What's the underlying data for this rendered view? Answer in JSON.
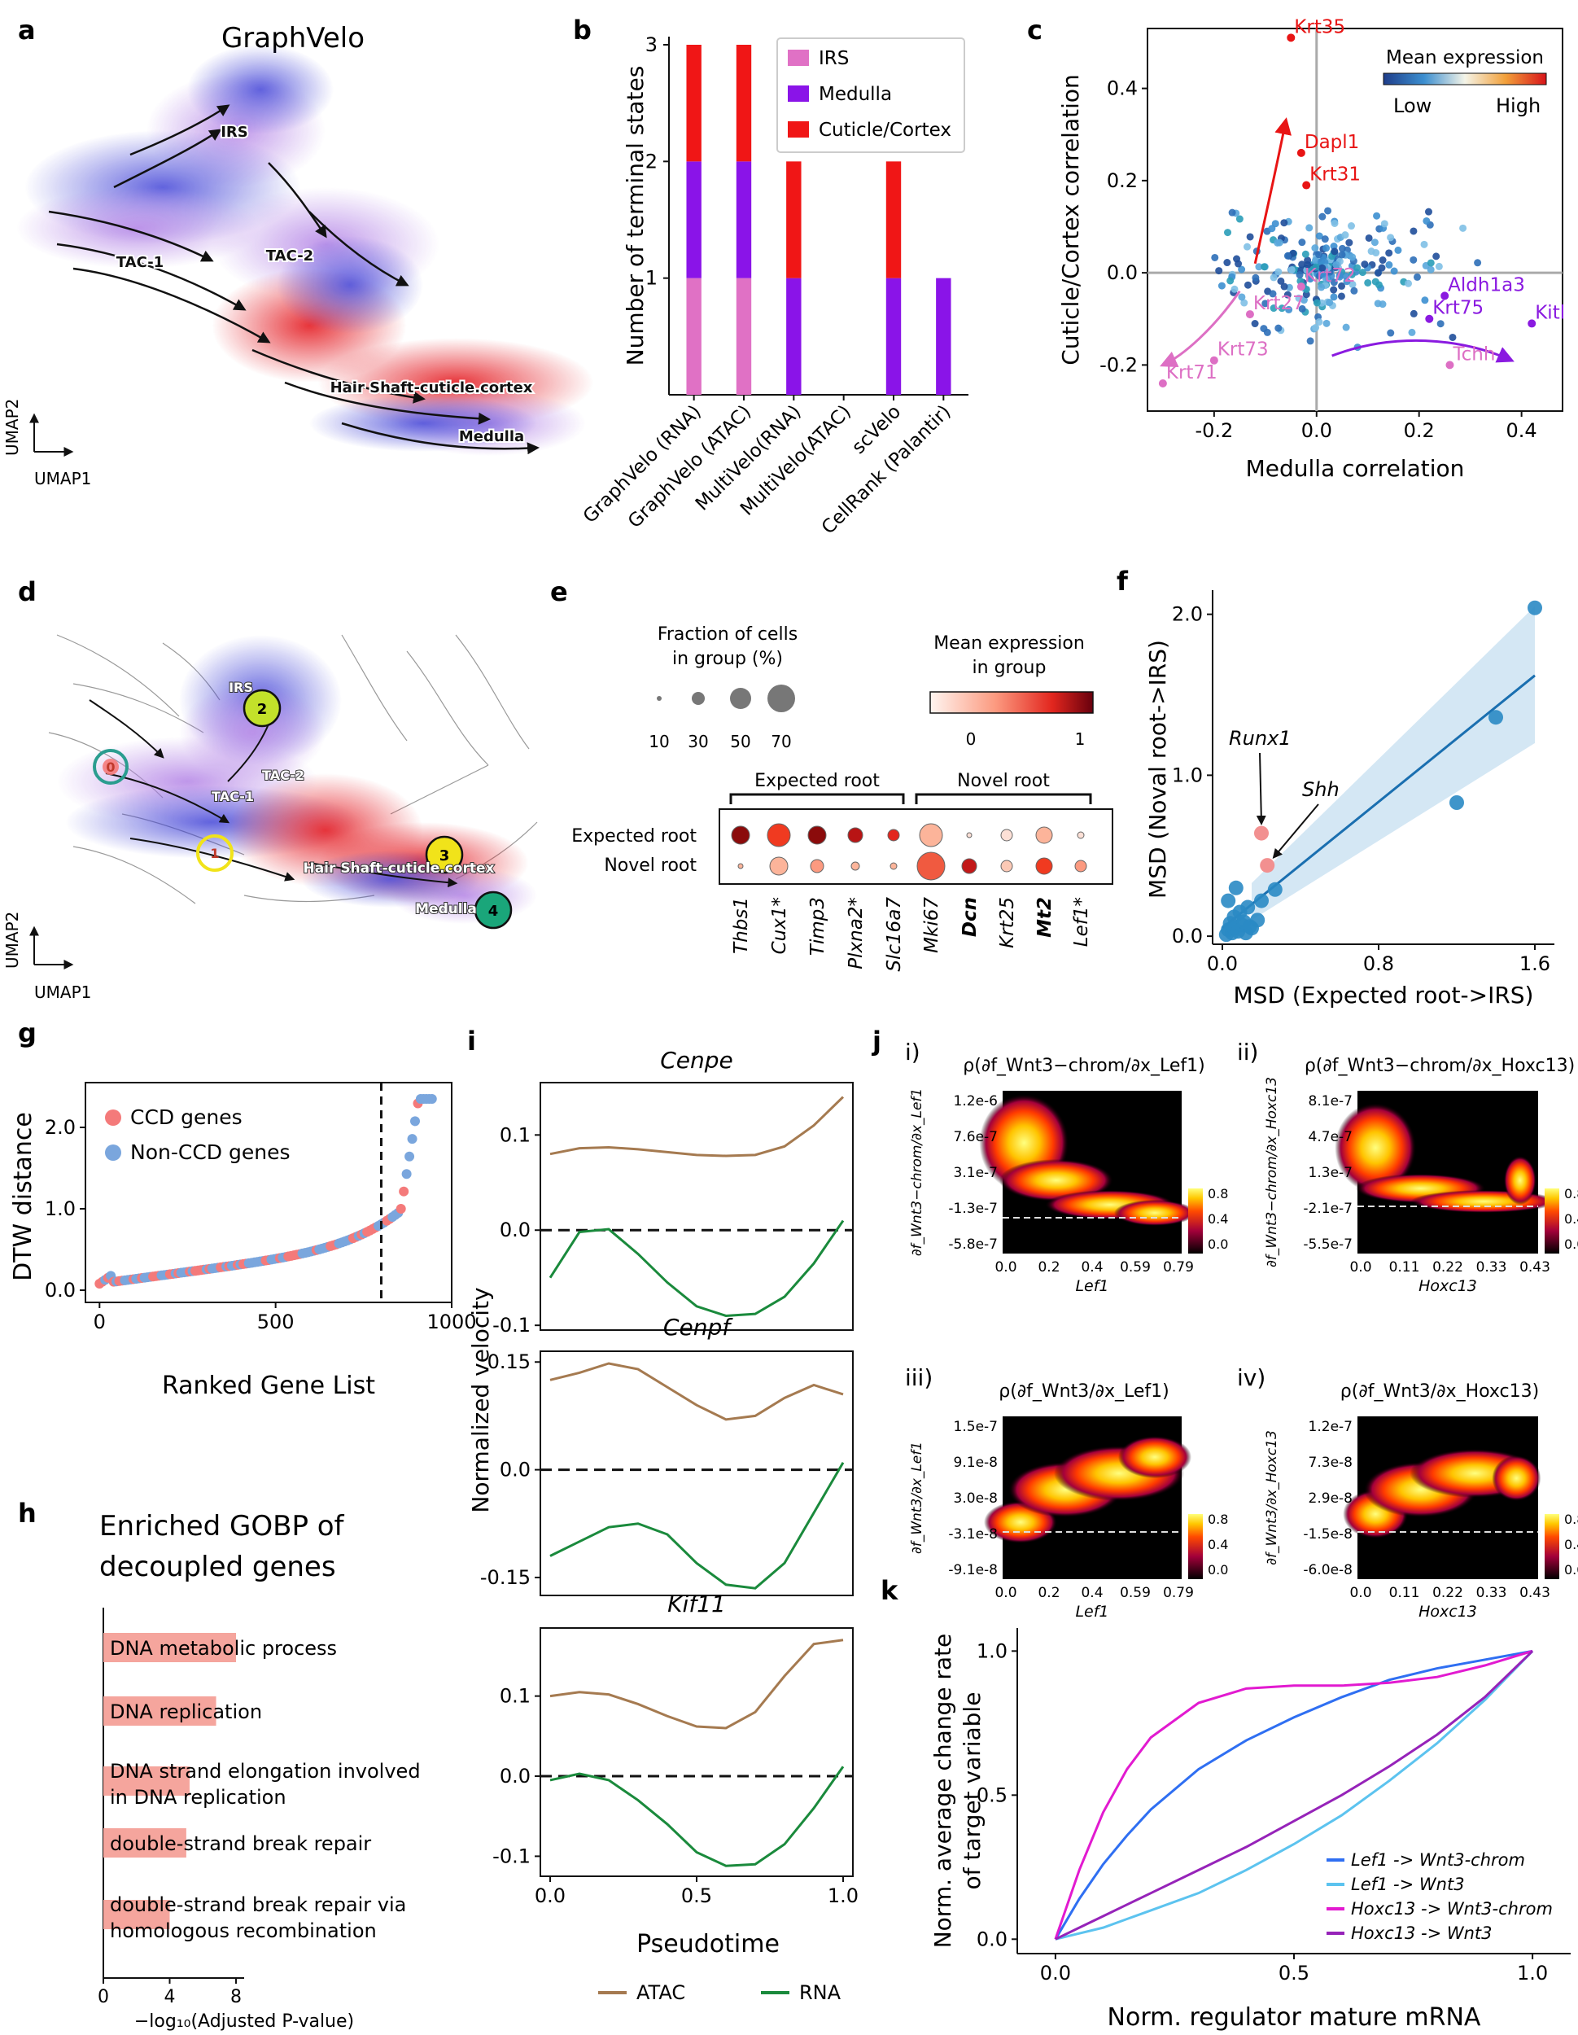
{
  "panels": {
    "a": {
      "letter": "a",
      "title": "GraphVelo",
      "umap_x": "UMAP1",
      "umap_y": "UMAP2",
      "labels": [
        "IRS",
        "TAC-1",
        "TAC-2",
        "Hair Shaft-cuticle.cortex",
        "Medulla"
      ]
    },
    "b": {
      "letter": "b"
    },
    "c": {
      "letter": "c"
    },
    "d": {
      "letter": "d",
      "umap_x": "UMAP1",
      "umap_y": "UMAP2",
      "labels": [
        "IRS",
        "TAC-2",
        "TAC-1",
        "Hair Shaft-cuticle.cortex",
        "Medulla"
      ],
      "nodes": [
        "0",
        "1",
        "2",
        "3",
        "4"
      ]
    },
    "e": {
      "letter": "e",
      "size_title_1": "Fraction of cells",
      "size_title_2": "in group (%)",
      "size_ticks": [
        "10",
        "30",
        "50",
        "70"
      ],
      "color_title_1": "Mean expression",
      "color_title_2": "in group",
      "color_ticks": [
        "0",
        "1"
      ],
      "group_expected": "Expected root",
      "group_novel": "Novel root",
      "rows": [
        "Expected root",
        "Novel root"
      ],
      "genes": [
        "Thbs1",
        "Cux1*",
        "Timp3",
        "Plxna2*",
        "Slc16a7",
        "Mki67",
        "Dcn",
        "Krt25",
        "Mt2",
        "Lef1*"
      ]
    },
    "f": {
      "letter": "f"
    },
    "g": {
      "letter": "g"
    },
    "h": {
      "letter": "h",
      "title_1": "Enriched GOBP of",
      "title_2": "decoupled genes",
      "xlabel": "−log₁₀(Adjusted P-value)",
      "xticks": [
        "0",
        "4",
        "8"
      ],
      "terms": [
        {
          "line1": "DNA metabolic process",
          "line2": "",
          "value": 8.0
        },
        {
          "line1": "DNA replication",
          "line2": "",
          "value": 6.8
        },
        {
          "line1": "DNA strand elongation involved",
          "line2": "in DNA replication",
          "value": 5.2
        },
        {
          "line1": "double-strand break repair",
          "line2": "",
          "value": 5.0
        },
        {
          "line1": "double-strand break repair via",
          "line2": "homologous recombination",
          "value": 4.0
        }
      ]
    },
    "i": {
      "letter": "i",
      "ylabel": "Normalized velocity",
      "xlabel": "Pseudotime",
      "legend": [
        "ATAC",
        "RNA"
      ],
      "colors": {
        "atac": "#a57a50",
        "rna": "#1a8a3c"
      }
    },
    "j": {
      "letter": "j",
      "sub": [
        {
          "roman": "i)",
          "title": "ρ(∂f_Wnt3−chrom/∂x_Lef1)",
          "ylab": "∂f_Wnt3−chrom/∂x_Lef1",
          "xlab": "Lef1",
          "yticks": [
            "1.2e-6",
            "7.6e-7",
            "3.1e-7",
            "-1.3e-7",
            "-5.8e-7"
          ],
          "xticks": [
            "0.0",
            "0.2",
            "0.4",
            "0.59",
            "0.79"
          ]
        },
        {
          "roman": "ii)",
          "title": "ρ(∂f_Wnt3−chrom/∂x_Hoxc13)",
          "ylab": "∂f_Wnt3−chrom/∂x_Hoxc13",
          "xlab": "Hoxc13",
          "yticks": [
            "8.1e-7",
            "4.7e-7",
            "1.3e-7",
            "-2.1e-7",
            "-5.5e-7"
          ],
          "xticks": [
            "0.0",
            "0.11",
            "0.22",
            "0.33",
            "0.43"
          ]
        },
        {
          "roman": "iii)",
          "title": "ρ(∂f_Wnt3/∂x_Lef1)",
          "ylab": "∂f_Wnt3/∂x_Lef1",
          "xlab": "Lef1",
          "yticks": [
            "1.5e-7",
            "9.1e-8",
            "3.0e-8",
            "-3.1e-8",
            "-9.1e-8"
          ],
          "xticks": [
            "0.0",
            "0.2",
            "0.4",
            "0.59",
            "0.79"
          ]
        },
        {
          "roman": "iv)",
          "title": "ρ(∂f_Wnt3/∂x_Hoxc13)",
          "ylab": "∂f_Wnt3/∂x_Hoxc13",
          "xlab": "Hoxc13",
          "yticks": [
            "1.2e-7",
            "7.3e-8",
            "2.9e-8",
            "-1.5e-8",
            "-6.0e-8"
          ],
          "xticks": [
            "0.0",
            "0.11",
            "0.22",
            "0.33",
            "0.43"
          ]
        }
      ],
      "cbar_ticks": [
        "0.8",
        "0.4",
        "0.0"
      ]
    },
    "k": {
      "letter": "k",
      "ylabel_1": "Norm. average change rate",
      "ylabel_2": "of target variable",
      "xlabel": "Norm. regulator mature mRNA"
    }
  },
  "chart_data": [
    {
      "id": "b",
      "type": "bar",
      "stacked": true,
      "ylabel": "Number of terminal states",
      "categories": [
        "GraphVelo (RNA)",
        "GraphVelo (ATAC)",
        "MultiVelo(RNA)",
        "MultiVelo(ATAC)",
        "scVelo",
        "CellRank (Palantir)"
      ],
      "series": [
        {
          "name": "IRS",
          "color": "#e071c5",
          "values": [
            1,
            1,
            0,
            0,
            0,
            0
          ]
        },
        {
          "name": "Medulla",
          "color": "#8a14e8",
          "values": [
            1,
            1,
            1,
            0,
            1,
            1
          ]
        },
        {
          "name": "Cuticle/Cortex",
          "color": "#f01616",
          "values": [
            1,
            1,
            1,
            0,
            1,
            0
          ]
        }
      ],
      "ylim": [
        0,
        3
      ],
      "yticks": [
        "1",
        "2",
        "3"
      ],
      "legend_position": "top-right"
    },
    {
      "id": "c",
      "type": "scatter",
      "xlabel": "Medulla correlation",
      "ylabel": "Cuticle/Cortex correlation",
      "xlim": [
        -0.33,
        0.48
      ],
      "ylim": [
        -0.3,
        0.53
      ],
      "xticks": [
        "-0.2",
        "0.0",
        "0.2",
        "0.4"
      ],
      "yticks": [
        "-0.2",
        "0.0",
        "0.2",
        "0.4"
      ],
      "colorbar": {
        "title": "Mean expression",
        "low": "Low",
        "high": "High"
      },
      "labeled_points": [
        {
          "label": "Krt35",
          "x": -0.05,
          "y": 0.51,
          "group": "Cuticle/Cortex"
        },
        {
          "label": "Dapl1",
          "x": -0.03,
          "y": 0.26,
          "group": "Cuticle/Cortex"
        },
        {
          "label": "Krt31",
          "x": -0.02,
          "y": 0.19,
          "group": "Cuticle/Cortex"
        },
        {
          "label": "Aldh1a3",
          "x": 0.25,
          "y": -0.05,
          "group": "Medulla"
        },
        {
          "label": "Krt75",
          "x": 0.22,
          "y": -0.1,
          "group": "Medulla"
        },
        {
          "label": "Kitl",
          "x": 0.42,
          "y": -0.11,
          "group": "Medulla"
        },
        {
          "label": "Krt72",
          "x": -0.03,
          "y": -0.03,
          "group": "IRS"
        },
        {
          "label": "Krt27",
          "x": -0.13,
          "y": -0.09,
          "group": "IRS"
        },
        {
          "label": "Krt73",
          "x": -0.2,
          "y": -0.19,
          "group": "IRS"
        },
        {
          "label": "Tchh",
          "x": 0.26,
          "y": -0.2,
          "group": "IRS"
        },
        {
          "label": "Krt71",
          "x": -0.3,
          "y": -0.24,
          "group": "IRS"
        }
      ]
    },
    {
      "id": "f",
      "type": "scatter",
      "xlabel": "MSD (Expected root->IRS)",
      "ylabel": "MSD (Noval root->IRS)",
      "xlim": [
        -0.05,
        1.7
      ],
      "ylim": [
        -0.05,
        2.15
      ],
      "xticks": [
        "0.0",
        "0.8",
        "1.6"
      ],
      "yticks": [
        "0.0",
        "1.0",
        "2.0"
      ],
      "highlight": [
        {
          "label": "Runx1",
          "x": 0.2,
          "y": 0.64
        },
        {
          "label": "Shh",
          "x": 0.23,
          "y": 0.44
        }
      ],
      "points_x": [
        0.02,
        0.03,
        0.05,
        0.04,
        0.06,
        0.08,
        0.1,
        0.12,
        0.15,
        0.18,
        0.06,
        0.09,
        0.11,
        0.14,
        0.03,
        0.07,
        0.13,
        0.2,
        0.27,
        1.2,
        1.4,
        1.6
      ],
      "points_y": [
        0.01,
        0.04,
        0.02,
        0.08,
        0.05,
        0.03,
        0.07,
        0.02,
        0.05,
        0.1,
        0.12,
        0.15,
        0.09,
        0.06,
        0.22,
        0.3,
        0.18,
        0.22,
        0.29,
        0.83,
        1.36,
        2.04
      ],
      "fit": {
        "x": [
          0,
          1.6
        ],
        "y": [
          0.05,
          1.62
        ]
      }
    },
    {
      "id": "g",
      "type": "scatter",
      "xlabel": "Ranked Gene List",
      "ylabel": "DTW distance",
      "xlim": [
        -40,
        1000
      ],
      "ylim": [
        -0.15,
        2.55
      ],
      "xticks": [
        "0",
        "500",
        "1000"
      ],
      "yticks": [
        "0.0",
        "1.0",
        "2.0"
      ],
      "legend": [
        "CCD genes",
        "Non-CCD genes"
      ],
      "colors": [
        "#f47a7a",
        "#7aa6dd"
      ],
      "cutoff_rank": 800
    },
    {
      "id": "i",
      "type": "line",
      "xlabel": "Pseudotime",
      "ylabel": "Normalized velocity",
      "subplots": [
        {
          "title": "Cenpe",
          "ylim": [
            -0.105,
            0.155
          ],
          "yticks": [
            "0.1",
            "0.0",
            "-0.1"
          ],
          "x": [
            0,
            0.1,
            0.2,
            0.3,
            0.4,
            0.5,
            0.6,
            0.7,
            0.8,
            0.9,
            1.0
          ],
          "atac": [
            0.08,
            0.086,
            0.087,
            0.085,
            0.082,
            0.079,
            0.078,
            0.079,
            0.088,
            0.11,
            0.14
          ],
          "rna": [
            -0.05,
            -0.002,
            0.001,
            -0.025,
            -0.055,
            -0.08,
            -0.09,
            -0.088,
            -0.07,
            -0.035,
            0.01
          ]
        },
        {
          "title": "Cenpf",
          "ylim": [
            -0.175,
            0.165
          ],
          "yticks": [
            "0.15",
            "0.0",
            "-0.15"
          ],
          "x": [
            0,
            0.1,
            0.2,
            0.3,
            0.4,
            0.5,
            0.6,
            0.7,
            0.8,
            0.9,
            1.0
          ],
          "atac": [
            0.125,
            0.135,
            0.148,
            0.14,
            0.115,
            0.09,
            0.07,
            0.075,
            0.1,
            0.118,
            0.105
          ],
          "rna": [
            -0.12,
            -0.1,
            -0.08,
            -0.075,
            -0.09,
            -0.13,
            -0.16,
            -0.165,
            -0.13,
            -0.06,
            0.01
          ]
        },
        {
          "title": "Kif11",
          "ylim": [
            -0.125,
            0.185
          ],
          "yticks": [
            "0.1",
            "0.0",
            "-0.1"
          ],
          "x": [
            0,
            0.1,
            0.2,
            0.3,
            0.4,
            0.5,
            0.6,
            0.7,
            0.8,
            0.9,
            1.0
          ],
          "atac": [
            0.1,
            0.105,
            0.102,
            0.09,
            0.075,
            0.062,
            0.06,
            0.08,
            0.125,
            0.165,
            0.17
          ],
          "rna": [
            -0.005,
            0.003,
            -0.005,
            -0.03,
            -0.06,
            -0.095,
            -0.112,
            -0.11,
            -0.085,
            -0.04,
            0.012
          ]
        }
      ],
      "xticks": [
        "0.0",
        "0.5",
        "1.0"
      ],
      "legend": [
        "ATAC",
        "RNA"
      ]
    },
    {
      "id": "k",
      "type": "line",
      "xlabel": "Norm. regulator mature mRNA",
      "ylabel": "Norm. average change rate of target variable",
      "xlim": [
        -0.08,
        1.08
      ],
      "ylim": [
        -0.05,
        1.08
      ],
      "xticks": [
        "0.0",
        "0.5",
        "1.0"
      ],
      "yticks": [
        "0.0",
        "0.5",
        "1.0"
      ],
      "x": [
        0,
        0.05,
        0.1,
        0.15,
        0.2,
        0.3,
        0.4,
        0.5,
        0.6,
        0.7,
        0.8,
        0.9,
        1.0
      ],
      "series": [
        {
          "name": "Lef1 -> Wnt3-chrom",
          "color": "#2f6ff2",
          "values": [
            0,
            0.14,
            0.26,
            0.36,
            0.45,
            0.59,
            0.69,
            0.77,
            0.84,
            0.9,
            0.94,
            0.97,
            1.0
          ]
        },
        {
          "name": "Lef1 -> Wnt3",
          "color": "#5cc3ef",
          "values": [
            0,
            0.02,
            0.04,
            0.07,
            0.1,
            0.16,
            0.24,
            0.33,
            0.43,
            0.55,
            0.68,
            0.83,
            1.0
          ]
        },
        {
          "name": "Hoxc13 -> Wnt3-chrom",
          "color": "#e21ad0",
          "values": [
            0,
            0.24,
            0.44,
            0.59,
            0.7,
            0.82,
            0.87,
            0.88,
            0.88,
            0.89,
            0.91,
            0.95,
            1.0
          ]
        },
        {
          "name": "Hoxc13 -> Wnt3",
          "color": "#9623b9",
          "values": [
            0,
            0.04,
            0.08,
            0.12,
            0.16,
            0.24,
            0.32,
            0.41,
            0.5,
            0.6,
            0.71,
            0.84,
            1.0
          ]
        }
      ]
    }
  ]
}
